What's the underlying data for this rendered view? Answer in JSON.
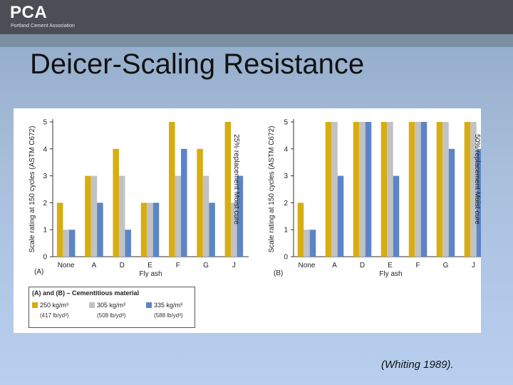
{
  "header": {
    "logo": "PCA",
    "logo_subtitle": "Portland Cement Association"
  },
  "slide": {
    "title": "Deicer-Scaling Resistance",
    "citation": "(Whiting 1989)."
  },
  "colors": {
    "s1": "#d7ad12",
    "s2": "#c2c2c2",
    "s3": "#5b85c8"
  },
  "legend": {
    "title": "(A) and (B) – Cementitious material",
    "items": [
      {
        "label": "250 kg/m³",
        "alt": "(417 lb/yd³)"
      },
      {
        "label": "305 kg/m³",
        "alt": "(508 lb/yd³)"
      },
      {
        "label": "335 kg/m³",
        "alt": "(588 lb/yd³)"
      }
    ]
  },
  "chart_data": [
    {
      "type": "bar",
      "panel": "(A)",
      "categories": [
        "None",
        "A",
        "D",
        "E",
        "F",
        "G",
        "J"
      ],
      "xlabel": "Fly ash",
      "ylabel": "Scale rating at 150 cycles (ASTM C672)",
      "side_label": "25% replacement  Moist cure",
      "ylim": [
        0,
        5
      ],
      "yticks": [
        0,
        1,
        2,
        3,
        4,
        5
      ],
      "series": [
        {
          "name": "250 kg/m3",
          "values": [
            2,
            3,
            4,
            2,
            5,
            4,
            5
          ]
        },
        {
          "name": "305 kg/m3",
          "values": [
            1,
            3,
            3,
            2,
            3,
            3,
            2
          ]
        },
        {
          "name": "335 kg/m3",
          "values": [
            1,
            2,
            1,
            2,
            4,
            2,
            3
          ]
        }
      ]
    },
    {
      "type": "bar",
      "panel": "(B)",
      "categories": [
        "None",
        "A",
        "D",
        "E",
        "F",
        "G",
        "J"
      ],
      "xlabel": "Fly ash",
      "ylabel": "Scale rating at 150 cycles (ASTM C672)",
      "side_label": "50% replacement  Moist cure",
      "ylim": [
        0,
        5
      ],
      "yticks": [
        0,
        1,
        2,
        3,
        4,
        5
      ],
      "series": [
        {
          "name": "250 kg/m3",
          "values": [
            2,
            5,
            5,
            5,
            5,
            5,
            5
          ]
        },
        {
          "name": "305 kg/m3",
          "values": [
            1,
            5,
            5,
            5,
            5,
            5,
            5
          ]
        },
        {
          "name": "335 kg/m3",
          "values": [
            1,
            3,
            5,
            3,
            5,
            4,
            4
          ]
        }
      ]
    }
  ]
}
